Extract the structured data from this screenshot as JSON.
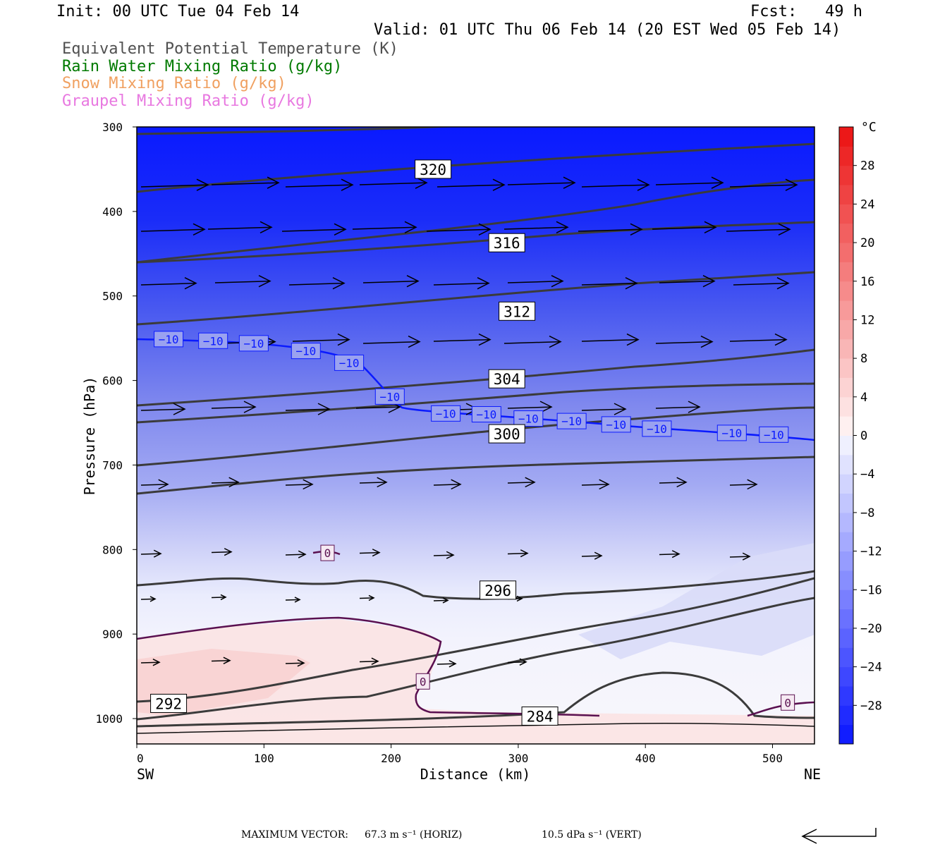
{
  "header": {
    "init": "Init: 00 UTC Tue 04 Feb 14",
    "fcst": "Fcst:   49 h",
    "valid": "Valid: 01 UTC Thu 06 Feb 14 (20 EST Wed 05 Feb 14)"
  },
  "legend": [
    {
      "text": "Equivalent Potential Temperature (K)",
      "color": "#505050"
    },
    {
      "text": "Rain Water Mixing Ratio (g/kg)",
      "color": "#007a00"
    },
    {
      "text": "Snow Mixing Ratio (g/kg)",
      "color": "#f0a060"
    },
    {
      "text": "Graupel Mixing Ratio (g/kg)",
      "color": "#e878e0"
    }
  ],
  "footer": {
    "prefix": "MAXIMUM VECTOR:",
    "horiz": "67.3 m s⁻¹ (HORIZ)",
    "vert": "10.5 dPa s⁻¹ (VERT)"
  },
  "chart_data": {
    "type": "heatmap",
    "xlabel": "Distance (km)",
    "ylabel": "Pressure (hPa)",
    "x_range": [
      0,
      533
    ],
    "y_range": [
      1030,
      300
    ],
    "x_ticks": [
      0,
      100,
      200,
      300,
      400,
      500
    ],
    "y_ticks": [
      300,
      400,
      500,
      600,
      700,
      800,
      900,
      1000
    ],
    "x_end_labels": {
      "left": "SW",
      "right": "NE"
    },
    "colorbar": {
      "unit": "°C",
      "min": -32,
      "max": 32,
      "step": 2,
      "tick_labels": [
        28,
        24,
        20,
        16,
        12,
        8,
        4,
        0,
        -4,
        -8,
        -12,
        -16,
        -20,
        -24,
        -28
      ]
    },
    "temperature_contour_labels": [
      {
        "x": 25,
        "p": 551,
        "v": "-10"
      },
      {
        "x": 60,
        "p": 553,
        "v": "-10"
      },
      {
        "x": 92,
        "p": 556,
        "v": "-10"
      },
      {
        "x": 133,
        "p": 565,
        "v": "-10"
      },
      {
        "x": 167,
        "p": 579,
        "v": "-10"
      },
      {
        "x": 199,
        "p": 619,
        "v": "-10"
      },
      {
        "x": 243,
        "p": 639,
        "v": "-10"
      },
      {
        "x": 275,
        "p": 640,
        "v": "-10"
      },
      {
        "x": 308,
        "p": 645,
        "v": "-10"
      },
      {
        "x": 342,
        "p": 648,
        "v": "-10"
      },
      {
        "x": 377,
        "p": 652,
        "v": "-10"
      },
      {
        "x": 409,
        "p": 657,
        "v": "-10"
      },
      {
        "x": 468,
        "p": 662,
        "v": "-10"
      },
      {
        "x": 501,
        "p": 664,
        "v": "-10"
      },
      {
        "x": 150,
        "p": 804,
        "v": "0"
      },
      {
        "x": 225,
        "p": 956,
        "v": "0"
      },
      {
        "x": 512,
        "p": 981,
        "v": "0"
      }
    ],
    "theta_e_labels": [
      {
        "x": 233,
        "p": 350,
        "v": "320"
      },
      {
        "x": 291,
        "p": 437,
        "v": "316"
      },
      {
        "x": 299,
        "p": 518,
        "v": "312"
      },
      {
        "x": 291,
        "p": 598,
        "v": "304"
      },
      {
        "x": 291,
        "p": 663,
        "v": "300"
      },
      {
        "x": 284,
        "p": 848,
        "v": "296"
      },
      {
        "x": 25,
        "p": 982,
        "v": "292"
      },
      {
        "x": 317,
        "p": 997,
        "v": "284"
      }
    ]
  }
}
